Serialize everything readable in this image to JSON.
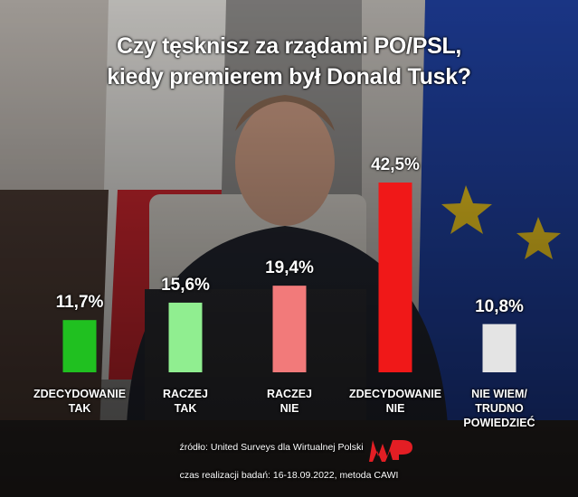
{
  "chart_data": {
    "type": "bar",
    "title": "Czy tęsknisz za rządami PO/PSL,\nkiedy premierem był Donald Tusk?",
    "categories": [
      "ZDECYDOWANIE\nTAK",
      "RACZEJ\nTAK",
      "RACZEJ\nNIE",
      "ZDECYDOWANIE\nNIE",
      "NIE WIEM/\nTRUDNO POWIEDZIEĆ"
    ],
    "series": [
      {
        "name": null,
        "values": [
          11.7,
          15.6,
          19.4,
          42.5,
          10.8
        ],
        "value_labels": [
          "11,7%",
          "15,6%",
          "19,4%",
          "42,5%",
          "10,8%"
        ],
        "colors": [
          "#20c020",
          "#90ee90",
          "#f27a7a",
          "#f01818",
          "#e4e4e4"
        ]
      }
    ],
    "source": "źródło: United Surveys dla Wirtualnej Polski",
    "note": "czas realizacji badań: 16-18.09.2022, metoda CAWI"
  }
}
